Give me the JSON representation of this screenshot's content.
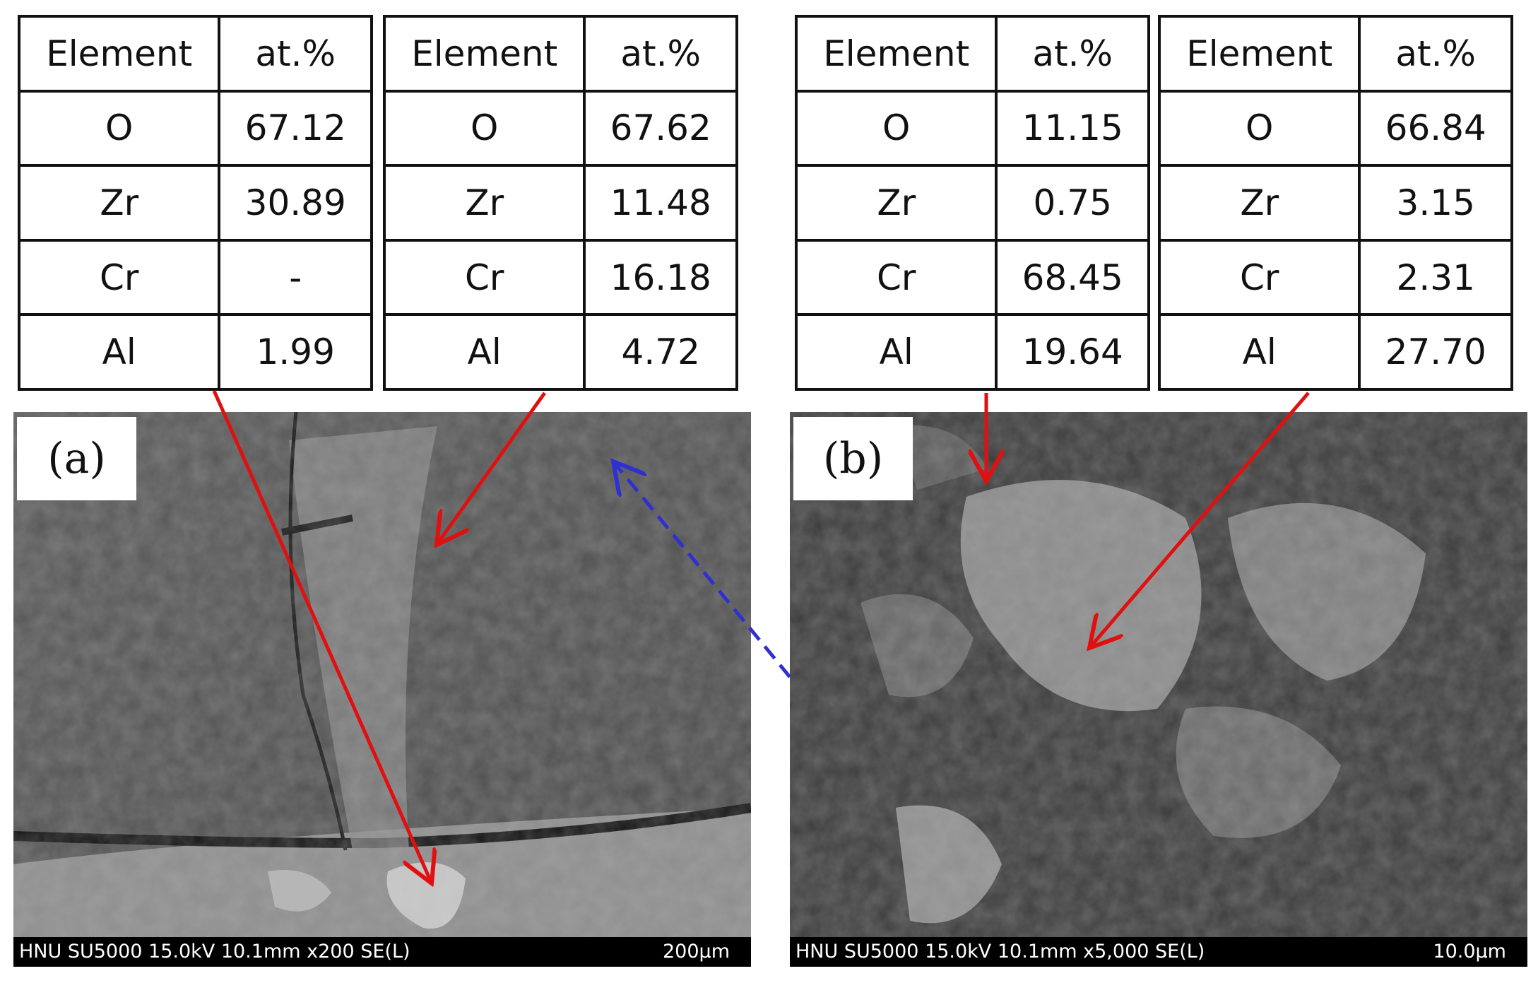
{
  "tables": [
    {
      "header": [
        "Element",
        "at.%"
      ],
      "rows": [
        [
          "O",
          "67.12"
        ],
        [
          "Zr",
          "30.89"
        ],
        [
          "Cr",
          "-"
        ],
        [
          "Al",
          "1.99"
        ]
      ]
    },
    {
      "header": [
        "Element",
        "at.%"
      ],
      "rows": [
        [
          "O",
          "67.62"
        ],
        [
          "Zr",
          "11.48"
        ],
        [
          "Cr",
          "16.18"
        ],
        [
          "Al",
          "4.72"
        ]
      ]
    },
    {
      "header": [
        "Element",
        "at.%"
      ],
      "rows": [
        [
          "O",
          "11.15"
        ],
        [
          "Zr",
          "0.75"
        ],
        [
          "Cr",
          "68.45"
        ],
        [
          "Al",
          "19.64"
        ]
      ]
    },
    {
      "header": [
        "Element",
        "at.%"
      ],
      "rows": [
        [
          "O",
          "66.84"
        ],
        [
          "Zr",
          "3.15"
        ],
        [
          "Cr",
          "2.31"
        ],
        [
          "Al",
          "27.70"
        ]
      ]
    }
  ],
  "panels": [
    {
      "label": "(a)",
      "info": "HNU SU5000 15.0kV 10.1mm x200 SE(L)",
      "scale": "200μm"
    },
    {
      "label": "(b)",
      "info": "HNU SU5000 15.0kV 10.1mm x5,000 SE(L)",
      "scale": "10.0μm"
    }
  ]
}
